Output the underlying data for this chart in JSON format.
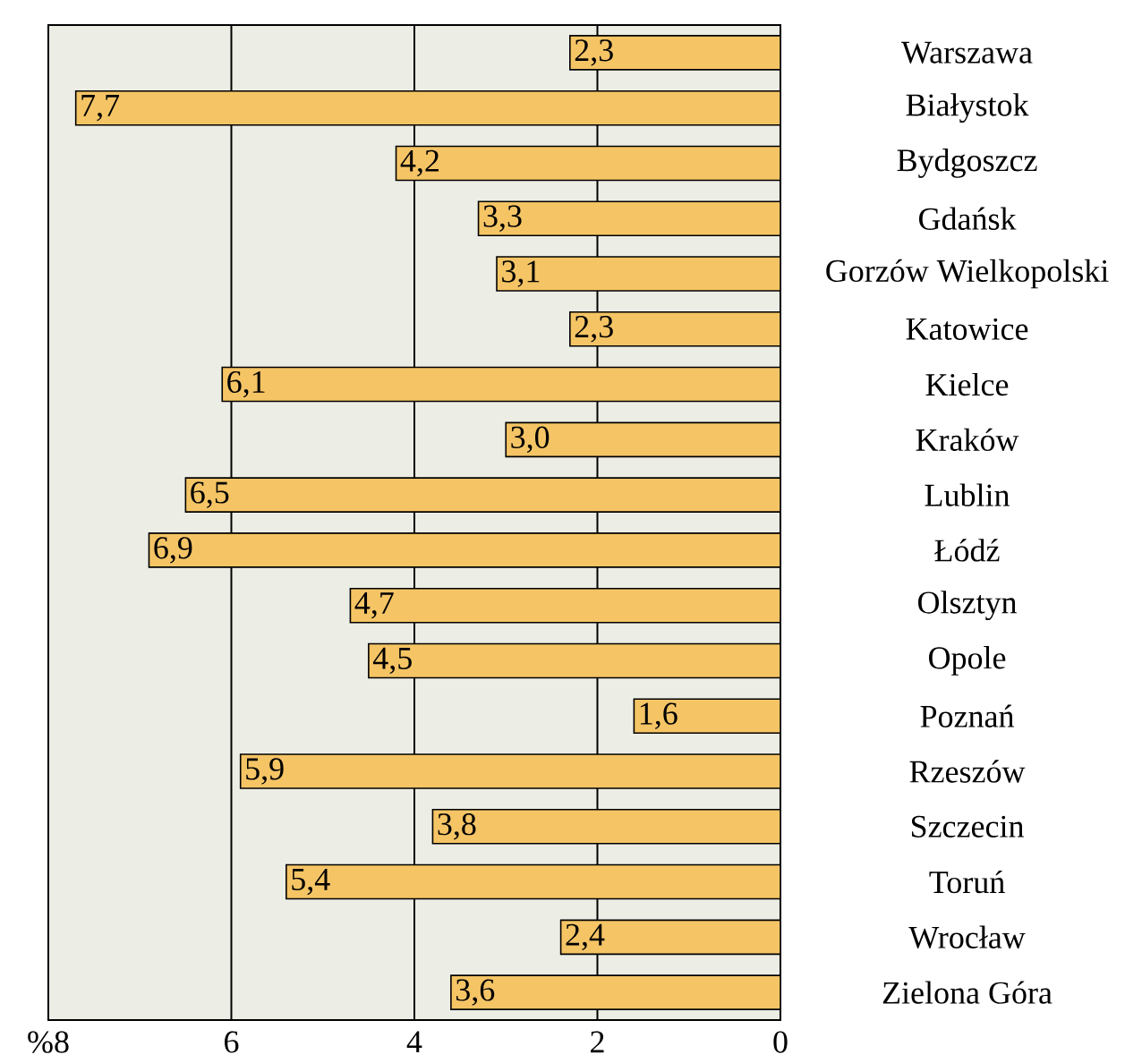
{
  "chart_data": {
    "type": "bar",
    "orientation": "horizontal",
    "categories": [
      "Warszawa",
      "Białystok",
      "Bydgoszcz",
      "Gdańsk",
      "Gorzów Wielkopolski",
      "Katowice",
      "Kielce",
      "Kraków",
      "Lublin",
      "Łódź",
      "Olsztyn",
      "Opole",
      "Poznań",
      "Rzeszów",
      "Szczecin",
      "Toruń",
      "Wrocław",
      "Zielona Góra"
    ],
    "values": [
      2.3,
      7.7,
      4.2,
      3.3,
      3.1,
      2.3,
      6.1,
      3.0,
      6.5,
      6.9,
      4.7,
      4.5,
      1.6,
      5.9,
      3.8,
      5.4,
      2.4,
      3.6
    ],
    "value_labels": [
      "2,3",
      "7,7",
      "4,2",
      "3,3",
      "3,1",
      "2,3",
      "6,1",
      "3,0",
      "6,5",
      "6,9",
      "4,7",
      "4,5",
      "1,6",
      "5,9",
      "3,8",
      "5,4",
      "2,4",
      "3,6"
    ],
    "color": "#f5c465",
    "xlim": [
      8,
      0
    ],
    "xticks": [
      {
        "value": 8,
        "label": "%8"
      },
      6,
      4,
      2,
      0
    ],
    "grid": "x"
  }
}
